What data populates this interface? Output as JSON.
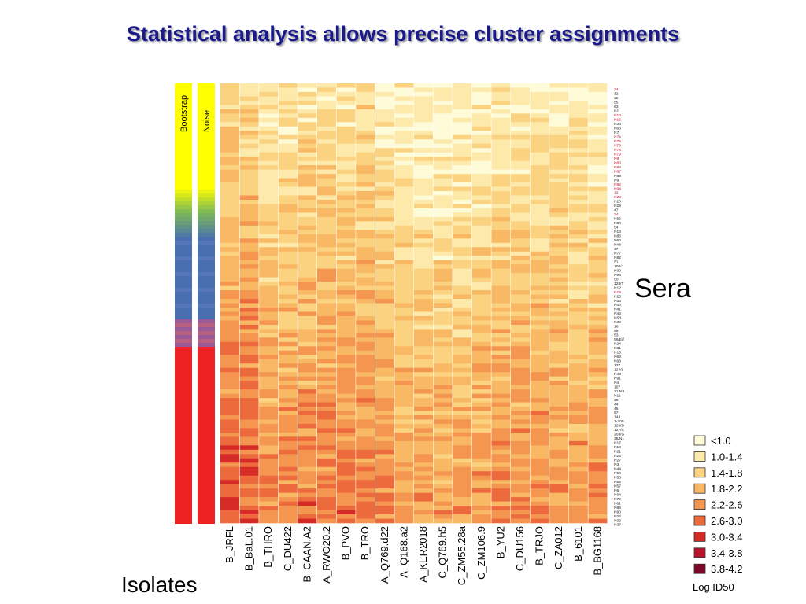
{
  "title": "Statistical analysis allows precise cluster assignments",
  "sera_label": "Sera",
  "isolates_label": "Isolates",
  "chart_data": {
    "type": "heatmap",
    "value_label": "Log ID50",
    "colors_matter": {
      "bin_colors": [
        "#fefbd8",
        "#fde9a9",
        "#fbd280",
        "#f9b863",
        "#f4964f",
        "#ec6a3b",
        "#d52a26",
        "#b7142b",
        "#7d0727"
      ],
      "bar_high": "#ffff00",
      "bar_mid": "#4a6fb0",
      "bar_low": "#ee2222",
      "bar_purple": "#9a5a98"
    },
    "legend_bins": [
      "<1.0",
      "1.0-1.4",
      "1.4-1.8",
      "1.8-2.2",
      "2.2-2.6",
      "2.6-3.0",
      "3.0-3.4",
      "3.4-3.8",
      "3.8-4.2"
    ],
    "side_bars": [
      {
        "name": "Bootstrap",
        "bands": [
          "yellow",
          "green-transition",
          "blue",
          "purple",
          "red"
        ]
      },
      {
        "name": "Noise",
        "bands": [
          "yellow",
          "green-transition",
          "blue",
          "purple",
          "red"
        ]
      }
    ],
    "isolates": [
      "B_JRFL",
      "B_BaL.01",
      "B_THRO",
      "C_DU422",
      "B_CAAN.A2",
      "A_RWO20.2",
      "B_PVO",
      "B_TRO",
      "A_Q769.d22",
      "A_Q168.a2",
      "A_KER2018",
      "C_Q769.h5",
      "C_ZM55.28a",
      "C_ZM106.9",
      "B_YU2",
      "C_DU156",
      "B_TRJO",
      "C_ZA012",
      "B_6101",
      "B_BG1168"
    ],
    "sera": [
      "34",
      "32",
      "36",
      "55",
      "63",
      "N1",
      "N10",
      "N16",
      "N34",
      "N63",
      "N7",
      "N74",
      "N75",
      "N76",
      "N78",
      "N79",
      "N8",
      "N83",
      "N84",
      "N87",
      "N89",
      "N9",
      "N92",
      "N94",
      "12",
      "N28",
      "N20",
      "N29",
      "47",
      "34",
      "N56",
      "N80",
      "54",
      "N13",
      "N85",
      "N60",
      "N48",
      "37",
      "N77",
      "N82",
      "51",
      "106/J",
      "N30",
      "N95",
      "50",
      "128/T",
      "N12",
      "N19",
      "N23",
      "N36",
      "N40",
      "N41",
      "N46",
      "N58",
      "N39",
      "16",
      "56",
      "53",
      "59/E/f",
      "N24",
      "N31",
      "N15",
      "N69",
      "N68",
      "137",
      "124/L",
      "N43",
      "N91",
      "N4",
      "107",
      "21/N3",
      "N11",
      "20",
      "44",
      "45",
      "57",
      "143",
      "1-200",
      "125/D",
      "127/C",
      "203/G",
      "35/N1",
      "N17",
      "N18",
      "N21",
      "N26",
      "N27",
      "N3",
      "N44",
      "N50",
      "N53",
      "N55",
      "N57",
      "N6",
      "N64",
      "N72",
      "N81",
      "N86",
      "N90",
      "N22",
      "N33",
      "N37"
    ],
    "highlighted_sera": [
      "N10",
      "N16",
      "N74",
      "N75",
      "N76",
      "N78",
      "N79",
      "N8",
      "N83",
      "N84",
      "N87",
      "N92",
      "N94",
      "12",
      "N28",
      "34",
      "N19"
    ],
    "pattern_summary": "Values rise from top (mostly <1.0 to 1.8-2.2) to bottom (mostly 2.2-2.6 to 3.8-4.2); leftmost isolates B_JRFL and B_BaL.01 are highest, columns C_Q769.h5 to C_ZM55.28a lowest."
  }
}
